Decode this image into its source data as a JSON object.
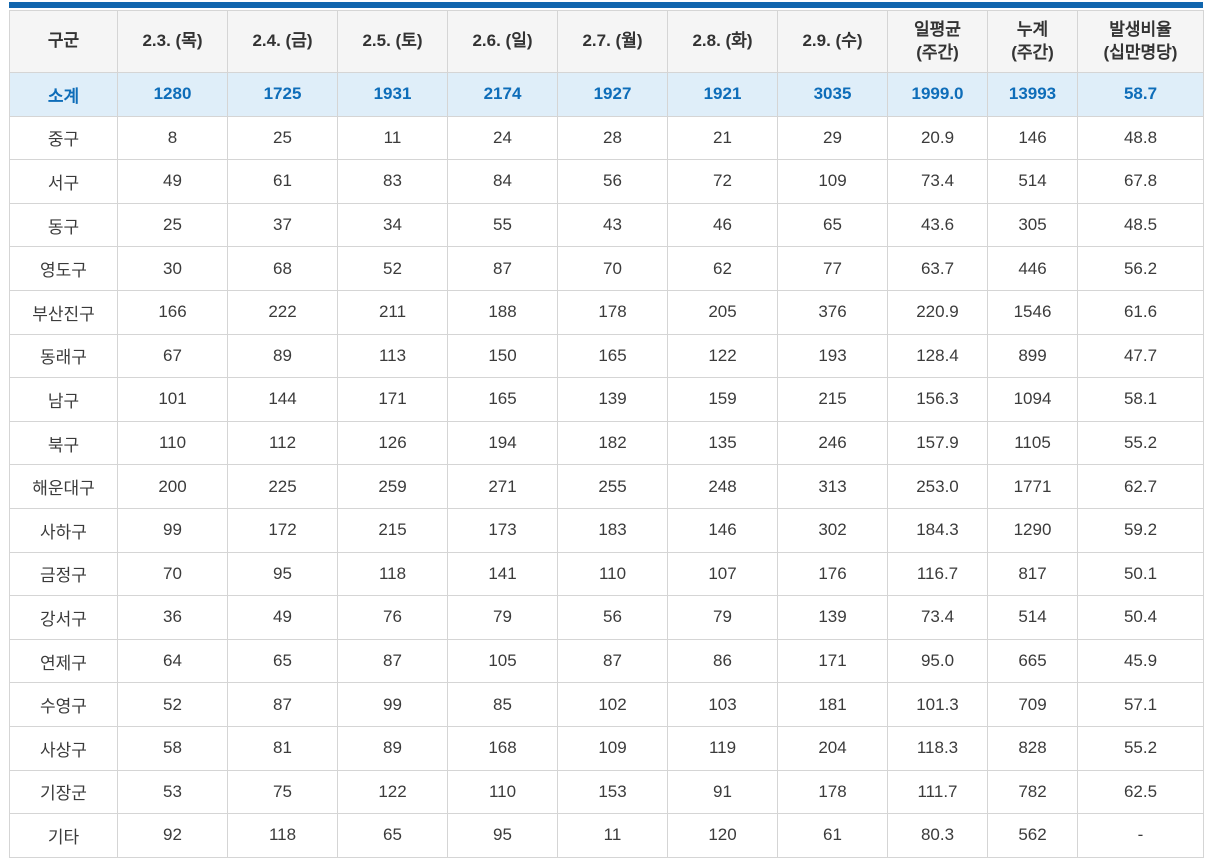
{
  "colors": {
    "top_bar": "#1166ae",
    "header_background": "#f5f5f5",
    "header_text": "#333333",
    "subtotal_background": "#dfeef9",
    "subtotal_text": "#0e6db9",
    "body_text": "#3b3b3b",
    "grid_line": "#d5d5d5"
  },
  "chart_data": {
    "type": "table",
    "columns": [
      "구군",
      "2.3. (목)",
      "2.4. (금)",
      "2.5. (토)",
      "2.6. (일)",
      "2.7. (월)",
      "2.8. (화)",
      "2.9. (수)",
      "일평균\n(주간)",
      "누계\n(주간)",
      "발생비율\n(십만명당)"
    ],
    "subtotal_row": [
      "소계",
      "1280",
      "1725",
      "1931",
      "2174",
      "1927",
      "1921",
      "3035",
      "1999.0",
      "13993",
      "58.7"
    ],
    "rows": [
      [
        "중구",
        "8",
        "25",
        "11",
        "24",
        "28",
        "21",
        "29",
        "20.9",
        "146",
        "48.8"
      ],
      [
        "서구",
        "49",
        "61",
        "83",
        "84",
        "56",
        "72",
        "109",
        "73.4",
        "514",
        "67.8"
      ],
      [
        "동구",
        "25",
        "37",
        "34",
        "55",
        "43",
        "46",
        "65",
        "43.6",
        "305",
        "48.5"
      ],
      [
        "영도구",
        "30",
        "68",
        "52",
        "87",
        "70",
        "62",
        "77",
        "63.7",
        "446",
        "56.2"
      ],
      [
        "부산진구",
        "166",
        "222",
        "211",
        "188",
        "178",
        "205",
        "376",
        "220.9",
        "1546",
        "61.6"
      ],
      [
        "동래구",
        "67",
        "89",
        "113",
        "150",
        "165",
        "122",
        "193",
        "128.4",
        "899",
        "47.7"
      ],
      [
        "남구",
        "101",
        "144",
        "171",
        "165",
        "139",
        "159",
        "215",
        "156.3",
        "1094",
        "58.1"
      ],
      [
        "북구",
        "110",
        "112",
        "126",
        "194",
        "182",
        "135",
        "246",
        "157.9",
        "1105",
        "55.2"
      ],
      [
        "해운대구",
        "200",
        "225",
        "259",
        "271",
        "255",
        "248",
        "313",
        "253.0",
        "1771",
        "62.7"
      ],
      [
        "사하구",
        "99",
        "172",
        "215",
        "173",
        "183",
        "146",
        "302",
        "184.3",
        "1290",
        "59.2"
      ],
      [
        "금정구",
        "70",
        "95",
        "118",
        "141",
        "110",
        "107",
        "176",
        "116.7",
        "817",
        "50.1"
      ],
      [
        "강서구",
        "36",
        "49",
        "76",
        "79",
        "56",
        "79",
        "139",
        "73.4",
        "514",
        "50.4"
      ],
      [
        "연제구",
        "64",
        "65",
        "87",
        "105",
        "87",
        "86",
        "171",
        "95.0",
        "665",
        "45.9"
      ],
      [
        "수영구",
        "52",
        "87",
        "99",
        "85",
        "102",
        "103",
        "181",
        "101.3",
        "709",
        "57.1"
      ],
      [
        "사상구",
        "58",
        "81",
        "89",
        "168",
        "109",
        "119",
        "204",
        "118.3",
        "828",
        "55.2"
      ],
      [
        "기장군",
        "53",
        "75",
        "122",
        "110",
        "153",
        "91",
        "178",
        "111.7",
        "782",
        "62.5"
      ],
      [
        "기타",
        "92",
        "118",
        "65",
        "95",
        "11",
        "120",
        "61",
        "80.3",
        "562",
        "-"
      ]
    ]
  }
}
